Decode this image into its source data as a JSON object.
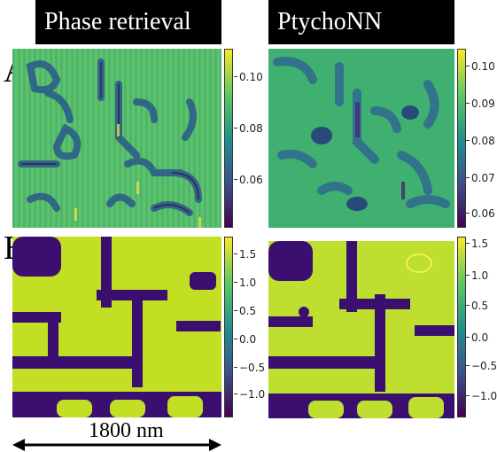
{
  "headers": {
    "left": "Phase retrieval",
    "right": "PtychoNN"
  },
  "row_labels": {
    "a": "A",
    "b": "B"
  },
  "scale_bar": {
    "label": "1800 nm"
  },
  "colorbars": {
    "a_left": [
      "0.10",
      "0.08",
      "0.06"
    ],
    "a_right": [
      "0.10",
      "0.09",
      "0.08",
      "0.07",
      "0.06"
    ],
    "b_left": [
      "1.5",
      "1.0",
      "0.5",
      "0.0",
      "−0.5",
      "−1.0"
    ],
    "b_right": [
      "1.5",
      "1.0",
      "0.5",
      "0.0",
      "−0.5",
      "−1.0"
    ]
  },
  "colors": {
    "viridis_dark": "#440154",
    "viridis_blue": "#3b528b",
    "viridis_teal": "#21918c",
    "viridis_green": "#5ec962",
    "viridis_yellow": "#fde725"
  }
}
